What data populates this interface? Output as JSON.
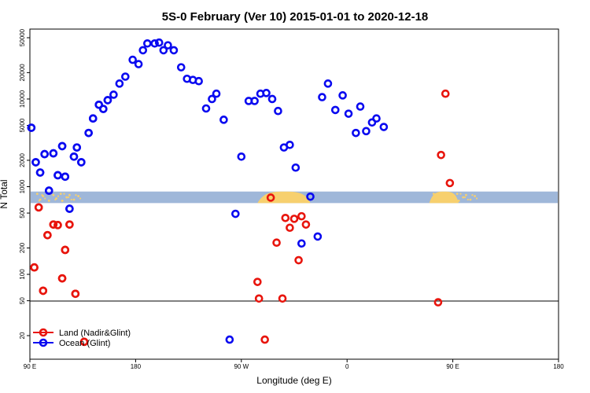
{
  "chart_data": {
    "type": "scatter",
    "title": "5S-0 February (Ver 10)   2015-01-01 to 2020-12-18",
    "xlabel": "Longitude (deg E)",
    "ylabel": "N Total",
    "x_scale": "longitude, shifted start 90 E",
    "x_ticks": [
      "90 E",
      "180",
      "90 W",
      "0",
      "90 E",
      "180"
    ],
    "y_scale": "log",
    "ylim": [
      10,
      65000
    ],
    "y_ticks": [
      "20",
      "50",
      "100",
      "200",
      "500",
      "1000",
      "2000",
      "5000",
      "10000",
      "20000",
      "50000"
    ],
    "reference_line": 50,
    "band": {
      "color": "#9fb7d9",
      "land_color": "#f7d06e"
    },
    "legend_position": "bottom-left",
    "series": [
      {
        "name": "Land (Nadir&Glint)",
        "color": "#e8150d",
        "points": [
          [
            93,
            120
          ],
          [
            96,
            580
          ],
          [
            99,
            65
          ],
          [
            102,
            280
          ],
          [
            106,
            370
          ],
          [
            109,
            365
          ],
          [
            112,
            90
          ],
          [
            114,
            190
          ],
          [
            117,
            370
          ],
          [
            121,
            60
          ],
          [
            127,
            17
          ],
          [
            245,
            82
          ],
          [
            246,
            53
          ],
          [
            250,
            18
          ],
          [
            254,
            750
          ],
          [
            258,
            230
          ],
          [
            262,
            53
          ],
          [
            264,
            440
          ],
          [
            267,
            340
          ],
          [
            270,
            430
          ],
          [
            273,
            145
          ],
          [
            275,
            460
          ],
          [
            278,
            370
          ],
          [
            368,
            48
          ],
          [
            370,
            2300
          ],
          [
            373,
            11500
          ],
          [
            376,
            1100
          ],
          [
            93,
            120
          ],
          [
            96,
            580
          ],
          [
            99,
            65
          ],
          [
            102,
            280
          ],
          [
            106,
            370
          ],
          [
            109,
            365
          ],
          [
            112,
            90
          ],
          [
            114,
            190
          ],
          [
            117,
            370
          ],
          [
            121,
            60
          ],
          [
            127,
            17
          ]
        ]
      },
      {
        "name": "Ocean (Glint)",
        "color": "#0a0af0",
        "points": [
          [
            91,
            4700
          ],
          [
            94,
            1900
          ],
          [
            97,
            1450
          ],
          [
            100,
            2350
          ],
          [
            103,
            900
          ],
          [
            106,
            2400
          ],
          [
            109,
            1350
          ],
          [
            112,
            2900
          ],
          [
            114,
            1300
          ],
          [
            117,
            560
          ],
          [
            120,
            2200
          ],
          [
            122,
            2800
          ],
          [
            125,
            1900
          ],
          [
            130,
            4100
          ],
          [
            133,
            6000
          ],
          [
            137,
            8600
          ],
          [
            140,
            7700
          ],
          [
            143,
            9700
          ],
          [
            147,
            11200
          ],
          [
            151,
            15000
          ],
          [
            155,
            18000
          ],
          [
            160,
            28000
          ],
          [
            164,
            25000
          ],
          [
            167,
            36000
          ],
          [
            170,
            43000
          ],
          [
            175,
            43000
          ],
          [
            178,
            44000
          ],
          [
            181,
            36000
          ],
          [
            184,
            41000
          ],
          [
            188,
            36000
          ],
          [
            193,
            23000
          ],
          [
            197,
            17000
          ],
          [
            201,
            16500
          ],
          [
            205,
            16000
          ],
          [
            210,
            7800
          ],
          [
            214,
            10000
          ],
          [
            217,
            11500
          ],
          [
            222,
            5800
          ],
          [
            226,
            18
          ],
          [
            230,
            490
          ],
          [
            234,
            2200
          ],
          [
            239,
            9500
          ],
          [
            243,
            9500
          ],
          [
            247,
            11500
          ],
          [
            251,
            11700
          ],
          [
            255,
            10000
          ],
          [
            259,
            7300
          ],
          [
            263,
            2800
          ],
          [
            267,
            3000
          ],
          [
            271,
            1650
          ],
          [
            275,
            225
          ],
          [
            281,
            770
          ],
          [
            286,
            270
          ],
          [
            289,
            10500
          ],
          [
            293,
            15000
          ],
          [
            298,
            7500
          ],
          [
            303,
            11000
          ],
          [
            307,
            6800
          ],
          [
            312,
            4100
          ],
          [
            315,
            8200
          ],
          [
            319,
            4300
          ],
          [
            323,
            5400
          ],
          [
            326,
            6000
          ],
          [
            331,
            4800
          ],
          [
            91,
            4700
          ],
          [
            94,
            1900
          ],
          [
            97,
            1450
          ],
          [
            100,
            2350
          ],
          [
            103,
            900
          ],
          [
            106,
            2400
          ],
          [
            109,
            1350
          ],
          [
            112,
            2900
          ],
          [
            114,
            1300
          ],
          [
            117,
            560
          ],
          [
            120,
            2200
          ],
          [
            122,
            2800
          ],
          [
            125,
            1900
          ],
          [
            130,
            4100
          ],
          [
            133,
            6000
          ],
          [
            137,
            8600
          ],
          [
            140,
            7700
          ],
          [
            143,
            9700
          ]
        ]
      }
    ]
  }
}
